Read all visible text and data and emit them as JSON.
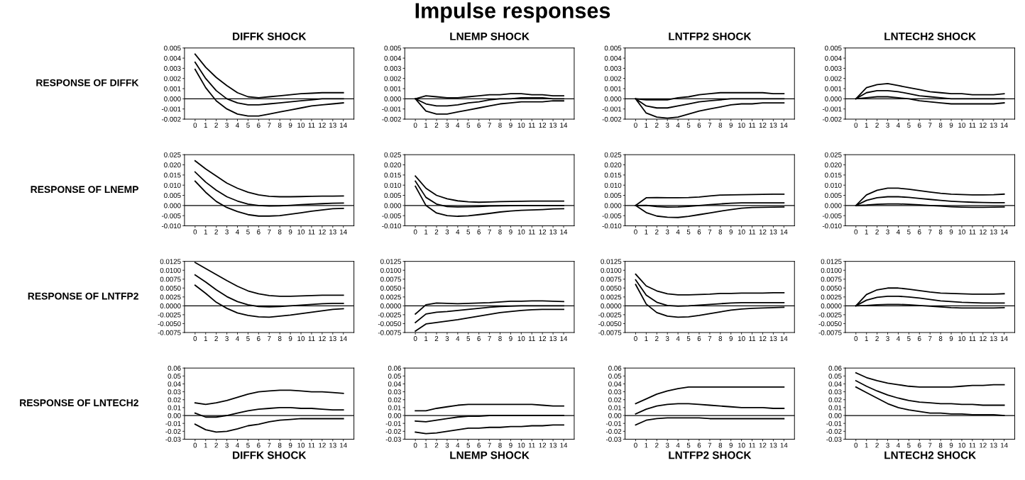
{
  "chart_data": [
    {
      "type": "line",
      "title": "DIFFK SHOCK",
      "ylabel": "RESPONSE OF DIFFK",
      "annotations": [
        "Impulse responses"
      ],
      "x": [
        0,
        1,
        2,
        3,
        4,
        5,
        6,
        7,
        8,
        9,
        10,
        11,
        12,
        13,
        14
      ],
      "xlim": [
        -1,
        15
      ],
      "xticks": [
        0,
        1,
        2,
        3,
        4,
        5,
        6,
        7,
        8,
        9,
        10,
        11,
        12,
        13,
        14
      ],
      "ylim": [
        -0.002,
        0.005
      ],
      "yticks": [
        -0.002,
        -0.001,
        {
          "value": 0,
          "label": "0.000"
        },
        0.001,
        0.002,
        0.003,
        0.004,
        0.005
      ],
      "ref_lines": [
        {
          "axis": "y",
          "value": 0,
          "color": "#000000"
        }
      ],
      "series": [
        {
          "color": "#000000",
          "values": [
            0.0044,
            0.0031,
            0.0021,
            0.0013,
            0.0006,
            0.0002,
            0.0001,
            0.0002,
            0.0003,
            0.0004,
            0.0005,
            0.00055,
            0.0006,
            0.0006,
            0.0006
          ]
        },
        {
          "color": "#000000",
          "values": [
            0.0036,
            0.002,
            0.0008,
            0.0,
            -0.0004,
            -0.0006,
            -0.0006,
            -0.0005,
            -0.0004,
            -0.0003,
            -0.0002,
            -0.0001,
            0.0,
            0.0,
            0.0
          ]
        },
        {
          "color": "#000000",
          "values": [
            0.0029,
            0.0011,
            -0.0002,
            -0.001,
            -0.0015,
            -0.0017,
            -0.0017,
            -0.0015,
            -0.0013,
            -0.0011,
            -0.0009,
            -0.0007,
            -0.0006,
            -0.0005,
            -0.0004
          ]
        }
      ]
    },
    {
      "type": "line",
      "title": "LNEMP SHOCK",
      "x": [
        0,
        1,
        2,
        3,
        4,
        5,
        6,
        7,
        8,
        9,
        10,
        11,
        12,
        13,
        14
      ],
      "xlim": [
        -1,
        15
      ],
      "xticks": [
        0,
        1,
        2,
        3,
        4,
        5,
        6,
        7,
        8,
        9,
        10,
        11,
        12,
        13,
        14
      ],
      "ylim": [
        -0.002,
        0.005
      ],
      "yticks": [
        -0.002,
        -0.001,
        {
          "value": 0,
          "label": "0.000"
        },
        0.001,
        0.002,
        0.003,
        0.004,
        0.005
      ],
      "ref_lines": [
        {
          "axis": "y",
          "value": 0,
          "color": "#000000"
        }
      ],
      "series": [
        {
          "color": "#000000",
          "values": [
            0,
            0.0003,
            0.0002,
            0.0001,
            0.0001,
            0.0002,
            0.0003,
            0.0004,
            0.0004,
            0.0005,
            0.0005,
            0.0004,
            0.0004,
            0.0003,
            0.0003
          ]
        },
        {
          "color": "#000000",
          "values": [
            0,
            -0.0005,
            -0.0007,
            -0.0007,
            -0.0006,
            -0.0004,
            -0.0003,
            -0.0001,
            0,
            0,
            0.0001,
            0.0001,
            0.0001,
            0,
            0
          ]
        },
        {
          "color": "#000000",
          "values": [
            0,
            -0.0012,
            -0.0015,
            -0.0015,
            -0.0013,
            -0.0011,
            -0.0009,
            -0.0007,
            -0.0005,
            -0.0004,
            -0.0003,
            -0.0003,
            -0.0003,
            -0.0002,
            -0.0002
          ]
        }
      ]
    },
    {
      "type": "line",
      "title": "LNTFP2 SHOCK",
      "x": [
        0,
        1,
        2,
        3,
        4,
        5,
        6,
        7,
        8,
        9,
        10,
        11,
        12,
        13,
        14
      ],
      "xlim": [
        -1,
        15
      ],
      "xticks": [
        0,
        1,
        2,
        3,
        4,
        5,
        6,
        7,
        8,
        9,
        10,
        11,
        12,
        13,
        14
      ],
      "ylim": [
        -0.002,
        0.005
      ],
      "yticks": [
        -0.002,
        -0.001,
        {
          "value": 0,
          "label": "0.000"
        },
        0.001,
        0.002,
        0.003,
        0.004,
        0.005
      ],
      "ref_lines": [
        {
          "axis": "y",
          "value": 0,
          "color": "#000000"
        }
      ],
      "series": [
        {
          "color": "#000000",
          "values": [
            0,
            -0.0001,
            -0.0001,
            -0.0001,
            0.0001,
            0.0002,
            0.0004,
            0.0005,
            0.0006,
            0.0006,
            0.0006,
            0.0006,
            0.0006,
            0.0005,
            0.0005
          ]
        },
        {
          "color": "#000000",
          "values": [
            0,
            -0.0007,
            -0.0009,
            -0.0009,
            -0.0007,
            -0.0005,
            -0.0003,
            -0.0002,
            -0.0001,
            0,
            0,
            0,
            0,
            0,
            0
          ]
        },
        {
          "color": "#000000",
          "values": [
            0,
            -0.0014,
            -0.0018,
            -0.0019,
            -0.0018,
            -0.0015,
            -0.0012,
            -0.001,
            -0.0008,
            -0.0006,
            -0.0005,
            -0.0005,
            -0.0004,
            -0.0004,
            -0.0004
          ]
        }
      ]
    },
    {
      "type": "line",
      "title": "LNTECH2 SHOCK",
      "x": [
        0,
        1,
        2,
        3,
        4,
        5,
        6,
        7,
        8,
        9,
        10,
        11,
        12,
        13,
        14
      ],
      "xlim": [
        -1,
        15
      ],
      "xticks": [
        0,
        1,
        2,
        3,
        4,
        5,
        6,
        7,
        8,
        9,
        10,
        11,
        12,
        13,
        14
      ],
      "ylim": [
        -0.002,
        0.005
      ],
      "yticks": [
        -0.002,
        -0.001,
        {
          "value": 0,
          "label": "0.000"
        },
        0.001,
        0.002,
        0.003,
        0.004,
        0.005
      ],
      "ref_lines": [
        {
          "axis": "y",
          "value": 0,
          "color": "#000000"
        }
      ],
      "series": [
        {
          "color": "#000000",
          "values": [
            0,
            0.0011,
            0.0014,
            0.0015,
            0.0013,
            0.0011,
            0.0009,
            0.0007,
            0.0006,
            0.0005,
            0.0005,
            0.0004,
            0.0004,
            0.0004,
            0.0005
          ]
        },
        {
          "color": "#000000",
          "values": [
            0,
            0.0006,
            0.0008,
            0.0008,
            0.0007,
            0.0005,
            0.0003,
            0.0002,
            0.0001,
            0,
            0,
            0,
            0,
            0,
            0
          ]
        },
        {
          "color": "#000000",
          "values": [
            0,
            0.0001,
            0.0002,
            0.0002,
            0.0001,
            0,
            -0.0002,
            -0.0003,
            -0.0004,
            -0.0005,
            -0.0005,
            -0.0005,
            -0.0005,
            -0.0005,
            -0.0004
          ]
        }
      ]
    },
    {
      "type": "line",
      "ylabel": "RESPONSE OF LNEMP",
      "x": [
        0,
        1,
        2,
        3,
        4,
        5,
        6,
        7,
        8,
        9,
        10,
        11,
        12,
        13,
        14
      ],
      "xlim": [
        -1,
        15
      ],
      "xticks": [
        0,
        1,
        2,
        3,
        4,
        5,
        6,
        7,
        8,
        9,
        10,
        11,
        12,
        13,
        14
      ],
      "ylim": [
        -0.01,
        0.025
      ],
      "yticks": [
        {
          "value": -0.01,
          "label": "-0.010"
        },
        -0.005,
        {
          "value": 0,
          "label": "0.000"
        },
        0.005,
        {
          "value": 0.01,
          "label": "0.010"
        },
        0.015,
        {
          "value": 0.02,
          "label": "0.020"
        },
        0.025
      ],
      "ref_lines": [
        {
          "axis": "y",
          "value": 0,
          "color": "#000000"
        }
      ],
      "series": [
        {
          "color": "#000000",
          "values": [
            0.022,
            0.018,
            0.0145,
            0.011,
            0.0085,
            0.0065,
            0.0052,
            0.0045,
            0.0043,
            0.0043,
            0.0044,
            0.0045,
            0.0046,
            0.0046,
            0.0047
          ]
        },
        {
          "color": "#000000",
          "values": [
            0.0165,
            0.0115,
            0.0075,
            0.0043,
            0.0022,
            0.0007,
            0.0,
            -0.0003,
            -0.0002,
            0.0001,
            0.0004,
            0.0007,
            0.0009,
            0.0011,
            0.0012
          ]
        },
        {
          "color": "#000000",
          "values": [
            0.012,
            0.0065,
            0.002,
            -0.001,
            -0.003,
            -0.0045,
            -0.0052,
            -0.0052,
            -0.005,
            -0.0043,
            -0.0036,
            -0.0028,
            -0.0022,
            -0.0016,
            -0.0014
          ]
        }
      ]
    },
    {
      "type": "line",
      "x": [
        0,
        1,
        2,
        3,
        4,
        5,
        6,
        7,
        8,
        9,
        10,
        11,
        12,
        13,
        14
      ],
      "xlim": [
        -1,
        15
      ],
      "xticks": [
        0,
        1,
        2,
        3,
        4,
        5,
        6,
        7,
        8,
        9,
        10,
        11,
        12,
        13,
        14
      ],
      "ylim": [
        -0.01,
        0.025
      ],
      "yticks": [
        {
          "value": -0.01,
          "label": "-0.010"
        },
        -0.005,
        {
          "value": 0,
          "label": "0.000"
        },
        0.005,
        {
          "value": 0.01,
          "label": "0.010"
        },
        0.015,
        {
          "value": 0.02,
          "label": "0.020"
        },
        0.025
      ],
      "ref_lines": [
        {
          "axis": "y",
          "value": 0,
          "color": "#000000"
        }
      ],
      "series": [
        {
          "color": "#000000",
          "values": [
            0.0145,
            0.0085,
            0.005,
            0.0033,
            0.0023,
            0.0018,
            0.0016,
            0.0017,
            0.0019,
            0.002,
            0.0021,
            0.0022,
            0.0022,
            0.0022,
            0.0022
          ]
        },
        {
          "color": "#000000",
          "values": [
            0.012,
            0.004,
            0.0007,
            -0.0005,
            -0.0007,
            -0.0006,
            -0.0005,
            -0.0003,
            -0.0002,
            -0.0001,
            0,
            0,
            0,
            0,
            0
          ]
        },
        {
          "color": "#000000",
          "values": [
            0.0095,
            0.0,
            -0.0037,
            -0.005,
            -0.0053,
            -0.0051,
            -0.0045,
            -0.0039,
            -0.0032,
            -0.0027,
            -0.0024,
            -0.0022,
            -0.002,
            -0.0017,
            -0.0016
          ]
        }
      ]
    },
    {
      "type": "line",
      "x": [
        0,
        1,
        2,
        3,
        4,
        5,
        6,
        7,
        8,
        9,
        10,
        11,
        12,
        13,
        14
      ],
      "xlim": [
        -1,
        15
      ],
      "xticks": [
        0,
        1,
        2,
        3,
        4,
        5,
        6,
        7,
        8,
        9,
        10,
        11,
        12,
        13,
        14
      ],
      "ylim": [
        -0.01,
        0.025
      ],
      "yticks": [
        {
          "value": -0.01,
          "label": "-0.010"
        },
        -0.005,
        {
          "value": 0,
          "label": "0.000"
        },
        0.005,
        {
          "value": 0.01,
          "label": "0.010"
        },
        0.015,
        {
          "value": 0.02,
          "label": "0.020"
        },
        0.025
      ],
      "ref_lines": [
        {
          "axis": "y",
          "value": 0,
          "color": "#000000"
        }
      ],
      "series": [
        {
          "color": "#000000",
          "values": [
            0,
            0.0038,
            0.0039,
            0.0038,
            0.0038,
            0.0039,
            0.0042,
            0.0047,
            0.0051,
            0.0052,
            0.0053,
            0.0054,
            0.0055,
            0.0056,
            0.0056
          ]
        },
        {
          "color": "#000000",
          "values": [
            0,
            0.0001,
            -0.0005,
            -0.0008,
            -0.0007,
            -0.0004,
            0,
            0.0004,
            0.0008,
            0.0011,
            0.0013,
            0.0013,
            0.0013,
            0.0013,
            0.0013
          ]
        },
        {
          "color": "#000000",
          "values": [
            0,
            -0.0035,
            -0.0052,
            -0.0058,
            -0.0059,
            -0.0053,
            -0.0045,
            -0.0037,
            -0.0028,
            -0.002,
            -0.0013,
            -0.001,
            -0.0009,
            -0.0008,
            -0.0007
          ]
        }
      ]
    },
    {
      "type": "line",
      "x": [
        0,
        1,
        2,
        3,
        4,
        5,
        6,
        7,
        8,
        9,
        10,
        11,
        12,
        13,
        14
      ],
      "xlim": [
        -1,
        15
      ],
      "xticks": [
        0,
        1,
        2,
        3,
        4,
        5,
        6,
        7,
        8,
        9,
        10,
        11,
        12,
        13,
        14
      ],
      "ylim": [
        -0.01,
        0.025
      ],
      "yticks": [
        {
          "value": -0.01,
          "label": "-0.010"
        },
        -0.005,
        {
          "value": 0,
          "label": "0.000"
        },
        0.005,
        {
          "value": 0.01,
          "label": "0.010"
        },
        0.015,
        {
          "value": 0.02,
          "label": "0.020"
        },
        0.025
      ],
      "ref_lines": [
        {
          "axis": "y",
          "value": 0,
          "color": "#000000"
        }
      ],
      "series": [
        {
          "color": "#000000",
          "values": [
            0,
            0.0052,
            0.0075,
            0.0085,
            0.0085,
            0.008,
            0.0073,
            0.0066,
            0.006,
            0.0056,
            0.0054,
            0.0052,
            0.0052,
            0.0053,
            0.0056
          ]
        },
        {
          "color": "#000000",
          "values": [
            0,
            0.0025,
            0.0038,
            0.0043,
            0.0043,
            0.004,
            0.0035,
            0.003,
            0.0025,
            0.0021,
            0.0018,
            0.0016,
            0.0015,
            0.0014,
            0.0014
          ]
        },
        {
          "color": "#000000",
          "values": [
            0,
            0.0002,
            0.0006,
            0.0008,
            0.0008,
            0.0006,
            0.0003,
            0,
            -0.0003,
            -0.0006,
            -0.0008,
            -0.0009,
            -0.0009,
            -0.0008,
            -0.0007
          ]
        }
      ]
    },
    {
      "type": "line",
      "ylabel": "RESPONSE OF LNTFP2",
      "x": [
        0,
        1,
        2,
        3,
        4,
        5,
        6,
        7,
        8,
        9,
        10,
        11,
        12,
        13,
        14
      ],
      "xlim": [
        -1,
        15
      ],
      "xticks": [
        0,
        1,
        2,
        3,
        4,
        5,
        6,
        7,
        8,
        9,
        10,
        11,
        12,
        13,
        14
      ],
      "ylim": [
        -0.0075,
        0.0125
      ],
      "yticks": [
        -0.0075,
        {
          "value": -0.005,
          "label": "-0.0050"
        },
        -0.0025,
        {
          "value": 0,
          "label": "0.0000"
        },
        0.0025,
        {
          "value": 0.005,
          "label": "0.0050"
        },
        0.0075,
        {
          "value": 0.01,
          "label": "0.0100"
        },
        0.0125
      ],
      "ref_lines": [
        {
          "axis": "y",
          "value": 0,
          "color": "#000000"
        }
      ],
      "series": [
        {
          "color": "#000000",
          "values": [
            0.0122,
            0.0105,
            0.0088,
            0.0071,
            0.0055,
            0.0042,
            0.0034,
            0.0029,
            0.0027,
            0.0027,
            0.0028,
            0.0029,
            0.003,
            0.003,
            0.003
          ]
        },
        {
          "color": "#000000",
          "values": [
            0.0087,
            0.0067,
            0.0045,
            0.0026,
            0.0012,
            0.0003,
            -0.0002,
            -0.0003,
            -0.0002,
            0,
            0.0002,
            0.0004,
            0.0006,
            0.0007,
            0.0007
          ]
        },
        {
          "color": "#000000",
          "values": [
            0.0058,
            0.0035,
            0.001,
            -0.0007,
            -0.002,
            -0.0027,
            -0.0031,
            -0.0032,
            -0.0029,
            -0.0026,
            -0.0022,
            -0.0018,
            -0.0014,
            -0.001,
            -0.0008
          ]
        }
      ]
    },
    {
      "type": "line",
      "x": [
        0,
        1,
        2,
        3,
        4,
        5,
        6,
        7,
        8,
        9,
        10,
        11,
        12,
        13,
        14
      ],
      "xlim": [
        -1,
        15
      ],
      "xticks": [
        0,
        1,
        2,
        3,
        4,
        5,
        6,
        7,
        8,
        9,
        10,
        11,
        12,
        13,
        14
      ],
      "ylim": [
        -0.0075,
        0.0125
      ],
      "yticks": [
        -0.0075,
        {
          "value": -0.005,
          "label": "-0.0050"
        },
        -0.0025,
        {
          "value": 0,
          "label": "0.0000"
        },
        0.0025,
        {
          "value": 0.005,
          "label": "0.0050"
        },
        0.0075,
        {
          "value": 0.01,
          "label": "0.0100"
        },
        0.0125
      ],
      "ref_lines": [
        {
          "axis": "y",
          "value": 0,
          "color": "#000000"
        }
      ],
      "series": [
        {
          "color": "#000000",
          "values": [
            -0.0023,
            0.0003,
            0.0008,
            0.0007,
            0.0006,
            0.0007,
            0.0008,
            0.0009,
            0.0011,
            0.0013,
            0.0013,
            0.0014,
            0.0014,
            0.0013,
            0.0012
          ]
        },
        {
          "color": "#000000",
          "values": [
            -0.0047,
            -0.0023,
            -0.0018,
            -0.0016,
            -0.0013,
            -0.001,
            -0.0007,
            -0.0004,
            -0.0002,
            -0.0001,
            0,
            0,
            0,
            0,
            0
          ]
        },
        {
          "color": "#000000",
          "values": [
            -0.0071,
            -0.0051,
            -0.0047,
            -0.0043,
            -0.0039,
            -0.0034,
            -0.0029,
            -0.0024,
            -0.0019,
            -0.0016,
            -0.0013,
            -0.0011,
            -0.001,
            -0.001,
            -0.001
          ]
        }
      ]
    },
    {
      "type": "line",
      "x": [
        0,
        1,
        2,
        3,
        4,
        5,
        6,
        7,
        8,
        9,
        10,
        11,
        12,
        13,
        14
      ],
      "xlim": [
        -1,
        15
      ],
      "xticks": [
        0,
        1,
        2,
        3,
        4,
        5,
        6,
        7,
        8,
        9,
        10,
        11,
        12,
        13,
        14
      ],
      "ylim": [
        -0.0075,
        0.0125
      ],
      "yticks": [
        -0.0075,
        {
          "value": -0.005,
          "label": "-0.0050"
        },
        -0.0025,
        {
          "value": 0,
          "label": "0.0000"
        },
        0.0025,
        {
          "value": 0.005,
          "label": "0.0050"
        },
        0.0075,
        {
          "value": 0.01,
          "label": "0.0100"
        },
        0.0125
      ],
      "ref_lines": [
        {
          "axis": "y",
          "value": 0,
          "color": "#000000"
        }
      ],
      "series": [
        {
          "color": "#000000",
          "values": [
            0.0089,
            0.0056,
            0.0042,
            0.0034,
            0.0031,
            0.0031,
            0.0032,
            0.0033,
            0.0035,
            0.0035,
            0.0036,
            0.0036,
            0.0036,
            0.0037,
            0.0037
          ]
        },
        {
          "color": "#000000",
          "values": [
            0.0073,
            0.003,
            0.001,
            0.0001,
            -0.0001,
            0,
            0.0002,
            0.0004,
            0.0006,
            0.0008,
            0.0009,
            0.0009,
            0.0009,
            0.0009,
            0.0009
          ]
        },
        {
          "color": "#000000",
          "values": [
            0.006,
            0.0005,
            -0.0019,
            -0.0029,
            -0.0032,
            -0.0031,
            -0.0027,
            -0.0022,
            -0.0017,
            -0.0012,
            -0.0009,
            -0.0007,
            -0.0006,
            -0.0005,
            -0.0004
          ]
        }
      ]
    },
    {
      "type": "line",
      "x": [
        0,
        1,
        2,
        3,
        4,
        5,
        6,
        7,
        8,
        9,
        10,
        11,
        12,
        13,
        14
      ],
      "xlim": [
        -1,
        15
      ],
      "xticks": [
        0,
        1,
        2,
        3,
        4,
        5,
        6,
        7,
        8,
        9,
        10,
        11,
        12,
        13,
        14
      ],
      "ylim": [
        -0.0075,
        0.0125
      ],
      "yticks": [
        -0.0075,
        {
          "value": -0.005,
          "label": "-0.0050"
        },
        -0.0025,
        {
          "value": 0,
          "label": "0.0000"
        },
        0.0025,
        {
          "value": 0.005,
          "label": "0.0050"
        },
        0.0075,
        {
          "value": 0.01,
          "label": "0.0100"
        },
        0.0125
      ],
      "ref_lines": [
        {
          "axis": "y",
          "value": 0,
          "color": "#000000"
        }
      ],
      "series": [
        {
          "color": "#000000",
          "values": [
            0,
            0.0032,
            0.0045,
            0.005,
            0.005,
            0.0047,
            0.0043,
            0.0039,
            0.0036,
            0.0035,
            0.0034,
            0.0033,
            0.0033,
            0.0033,
            0.0034
          ]
        },
        {
          "color": "#000000",
          "values": [
            0,
            0.0016,
            0.0024,
            0.0027,
            0.0027,
            0.0025,
            0.0022,
            0.0018,
            0.0014,
            0.0012,
            0.001,
            0.0009,
            0.0008,
            0.0008,
            0.0008
          ]
        },
        {
          "color": "#000000",
          "values": [
            0,
            0.0001,
            0.0003,
            0.0004,
            0.0004,
            0.0003,
            0.0001,
            -0.0001,
            -0.0003,
            -0.0005,
            -0.0006,
            -0.0006,
            -0.0006,
            -0.0006,
            -0.0005
          ]
        }
      ]
    },
    {
      "type": "line",
      "ylabel": "RESPONSE OF LNTECH2",
      "xlabel": "DIFFK SHOCK",
      "x": [
        0,
        1,
        2,
        3,
        4,
        5,
        6,
        7,
        8,
        9,
        10,
        11,
        12,
        13,
        14
      ],
      "xlim": [
        -1,
        15
      ],
      "xticks": [
        0,
        1,
        2,
        3,
        4,
        5,
        6,
        7,
        8,
        9,
        10,
        11,
        12,
        13,
        14
      ],
      "ylim": [
        -0.03,
        0.06
      ],
      "yticks": [
        -0.03,
        -0.02,
        -0.01,
        {
          "value": 0,
          "label": "0.00"
        },
        0.01,
        0.02,
        0.03,
        0.04,
        0.05,
        0.06
      ],
      "ref_lines": [
        {
          "axis": "y",
          "value": 0,
          "color": "#000000"
        }
      ],
      "series": [
        {
          "color": "#000000",
          "values": [
            0.016,
            0.014,
            0.016,
            0.019,
            0.023,
            0.027,
            0.03,
            0.031,
            0.032,
            0.032,
            0.031,
            0.03,
            0.03,
            0.029,
            0.028
          ]
        },
        {
          "color": "#000000",
          "values": [
            0.003,
            -0.002,
            -0.002,
            0.0,
            0.003,
            0.006,
            0.008,
            0.009,
            0.01,
            0.01,
            0.009,
            0.009,
            0.008,
            0.007,
            0.007
          ]
        },
        {
          "color": "#000000",
          "values": [
            -0.011,
            -0.018,
            -0.021,
            -0.02,
            -0.017,
            -0.013,
            -0.011,
            -0.008,
            -0.006,
            -0.005,
            -0.004,
            -0.004,
            -0.004,
            -0.004,
            -0.004
          ]
        }
      ]
    },
    {
      "type": "line",
      "xlabel": "LNEMP SHOCK",
      "x": [
        0,
        1,
        2,
        3,
        4,
        5,
        6,
        7,
        8,
        9,
        10,
        11,
        12,
        13,
        14
      ],
      "xlim": [
        -1,
        15
      ],
      "xticks": [
        0,
        1,
        2,
        3,
        4,
        5,
        6,
        7,
        8,
        9,
        10,
        11,
        12,
        13,
        14
      ],
      "ylim": [
        -0.03,
        0.06
      ],
      "yticks": [
        -0.03,
        -0.02,
        -0.01,
        {
          "value": 0,
          "label": "0.00"
        },
        0.01,
        0.02,
        0.03,
        0.04,
        0.05,
        0.06
      ],
      "ref_lines": [
        {
          "axis": "y",
          "value": 0,
          "color": "#000000"
        }
      ],
      "series": [
        {
          "color": "#000000",
          "values": [
            0.006,
            0.006,
            0.009,
            0.011,
            0.013,
            0.014,
            0.014,
            0.014,
            0.014,
            0.014,
            0.014,
            0.014,
            0.013,
            0.012,
            0.012
          ]
        },
        {
          "color": "#000000",
          "values": [
            -0.007,
            -0.008,
            -0.006,
            -0.004,
            -0.002,
            -0.001,
            -0.001,
            0,
            0,
            0,
            0,
            0,
            0,
            0,
            0
          ]
        },
        {
          "color": "#000000",
          "values": [
            -0.021,
            -0.023,
            -0.022,
            -0.02,
            -0.018,
            -0.016,
            -0.016,
            -0.015,
            -0.015,
            -0.014,
            -0.014,
            -0.013,
            -0.013,
            -0.012,
            -0.012
          ]
        }
      ]
    },
    {
      "type": "line",
      "xlabel": "LNTFP2 SHOCK",
      "x": [
        0,
        1,
        2,
        3,
        4,
        5,
        6,
        7,
        8,
        9,
        10,
        11,
        12,
        13,
        14
      ],
      "xlim": [
        -1,
        15
      ],
      "xticks": [
        0,
        1,
        2,
        3,
        4,
        5,
        6,
        7,
        8,
        9,
        10,
        11,
        12,
        13,
        14
      ],
      "ylim": [
        -0.03,
        0.06
      ],
      "yticks": [
        -0.03,
        -0.02,
        -0.01,
        {
          "value": 0,
          "label": "0.00"
        },
        0.01,
        0.02,
        0.03,
        0.04,
        0.05,
        0.06
      ],
      "ref_lines": [
        {
          "axis": "y",
          "value": 0,
          "color": "#000000"
        }
      ],
      "series": [
        {
          "color": "#000000",
          "values": [
            0.015,
            0.021,
            0.027,
            0.031,
            0.034,
            0.036,
            0.036,
            0.036,
            0.036,
            0.036,
            0.036,
            0.036,
            0.036,
            0.036,
            0.036
          ]
        },
        {
          "color": "#000000",
          "values": [
            0.002,
            0.008,
            0.012,
            0.014,
            0.015,
            0.015,
            0.014,
            0.013,
            0.012,
            0.011,
            0.01,
            0.01,
            0.01,
            0.009,
            0.009
          ]
        },
        {
          "color": "#000000",
          "values": [
            -0.012,
            -0.006,
            -0.004,
            -0.003,
            -0.003,
            -0.003,
            -0.003,
            -0.004,
            -0.004,
            -0.004,
            -0.004,
            -0.004,
            -0.004,
            -0.004,
            -0.004
          ]
        }
      ]
    },
    {
      "type": "line",
      "xlabel": "LNTECH2 SHOCK",
      "x": [
        0,
        1,
        2,
        3,
        4,
        5,
        6,
        7,
        8,
        9,
        10,
        11,
        12,
        13,
        14
      ],
      "xlim": [
        -1,
        15
      ],
      "xticks": [
        0,
        1,
        2,
        3,
        4,
        5,
        6,
        7,
        8,
        9,
        10,
        11,
        12,
        13,
        14
      ],
      "ylim": [
        -0.03,
        0.06
      ],
      "yticks": [
        -0.03,
        -0.02,
        -0.01,
        {
          "value": 0,
          "label": "0.00"
        },
        0.01,
        0.02,
        0.03,
        0.04,
        0.05,
        0.06
      ],
      "ref_lines": [
        {
          "axis": "y",
          "value": 0,
          "color": "#000000"
        }
      ],
      "series": [
        {
          "color": "#000000",
          "values": [
            0.054,
            0.048,
            0.044,
            0.041,
            0.039,
            0.037,
            0.036,
            0.036,
            0.036,
            0.036,
            0.037,
            0.038,
            0.038,
            0.039,
            0.039
          ]
        },
        {
          "color": "#000000",
          "values": [
            0.044,
            0.037,
            0.031,
            0.026,
            0.022,
            0.019,
            0.017,
            0.016,
            0.015,
            0.015,
            0.014,
            0.014,
            0.013,
            0.013,
            0.013
          ]
        },
        {
          "color": "#000000",
          "values": [
            0.036,
            0.029,
            0.022,
            0.015,
            0.01,
            0.007,
            0.005,
            0.003,
            0.003,
            0.002,
            0.002,
            0.001,
            0.001,
            0.001,
            0.0
          ]
        }
      ]
    }
  ]
}
